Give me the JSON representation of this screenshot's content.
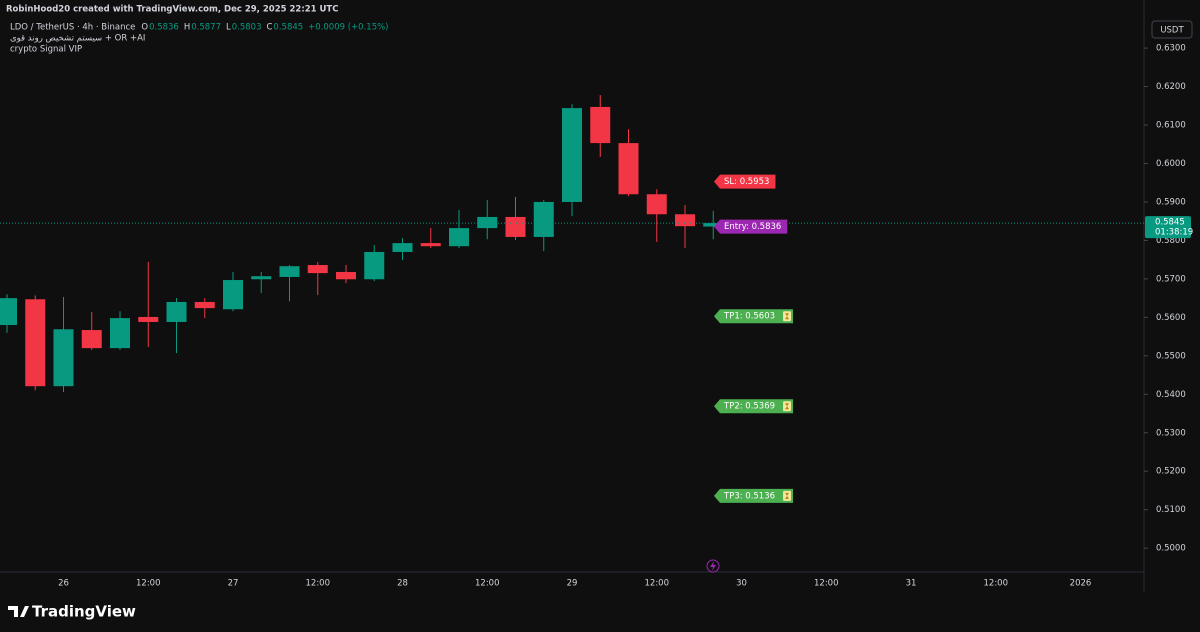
{
  "header": {
    "credit": "RobinHood20 created with TradingView.com, Dec 29, 2025 22:21 UTC",
    "brand": "TradingView"
  },
  "chart_data": {
    "type": "candlestick",
    "symbol": "LDO / TetherUS · 4h · Binance",
    "ohlc_header": {
      "o_label": "O",
      "o": 0.5836,
      "h_label": "H",
      "h": 0.5877,
      "l_label": "L",
      "l": 0.5803,
      "c_label": "C",
      "c": 0.5845,
      "change": "+0.0009 (+0.15%)"
    },
    "indicators": [
      "سیستم تشخیص روند قوی + OR +AI",
      "crypto Signal VIP"
    ],
    "currency": "USDT",
    "countdown": "01:38:19",
    "up_color": "#089981",
    "down_color": "#f23645",
    "open": [
      0.558,
      0.5647,
      0.5421,
      0.5567,
      0.552,
      0.5601,
      0.5588,
      0.564,
      0.5621,
      0.5699,
      0.5705,
      0.5736,
      0.5718,
      0.5699,
      0.577,
      0.5793,
      0.5785,
      0.5832,
      0.5861,
      0.5809,
      0.59,
      0.6147,
      0.6053,
      0.592,
      0.5868,
      0.5836
    ],
    "high": [
      0.566,
      0.5657,
      0.5653,
      0.5614,
      0.5616,
      0.5744,
      0.565,
      0.565,
      0.5718,
      0.5718,
      0.5736,
      0.5744,
      0.5736,
      0.5788,
      0.5806,
      0.5832,
      0.5879,
      0.5905,
      0.5913,
      0.5905,
      0.6154,
      0.6178,
      0.6089,
      0.5933,
      0.5892,
      0.5877
    ],
    "low": [
      0.556,
      0.541,
      0.5406,
      0.5515,
      0.5515,
      0.5523,
      0.5507,
      0.5598,
      0.5616,
      0.5663,
      0.5642,
      0.5658,
      0.5689,
      0.5694,
      0.5749,
      0.578,
      0.578,
      0.5803,
      0.5801,
      0.5772,
      0.5863,
      0.6017,
      0.5915,
      0.5796,
      0.578,
      0.5803
    ],
    "close": [
      0.565,
      0.5421,
      0.5569,
      0.552,
      0.5598,
      0.5588,
      0.564,
      0.5624,
      0.5697,
      0.5707,
      0.5733,
      0.5715,
      0.5699,
      0.577,
      0.5793,
      0.5785,
      0.5832,
      0.5861,
      0.5809,
      0.59,
      0.6144,
      0.6053,
      0.592,
      0.5868,
      0.5837,
      0.5845
    ],
    "levels": [
      {
        "label": "SL: 0.5953",
        "value": 0.5953,
        "color": "#f23645"
      },
      {
        "label": "Entry: 0.5836",
        "value": 0.5836,
        "color": "#9c27b0"
      },
      {
        "label": "TP1: 0.5603",
        "value": 0.5603,
        "color": "#4caf50"
      },
      {
        "label": "TP2: 0.5369",
        "value": 0.5369,
        "color": "#4caf50"
      },
      {
        "label": "TP3: 0.5136",
        "value": 0.5136,
        "color": "#4caf50"
      }
    ],
    "ylim": [
      0.4938,
      0.6425
    ],
    "yticks": [
      {
        "value": 0.63,
        "label": "0.6300"
      },
      {
        "value": 0.62,
        "label": "0.6200"
      },
      {
        "value": 0.61,
        "label": "0.6100"
      },
      {
        "value": 0.6,
        "label": "0.6000"
      },
      {
        "value": 0.59,
        "label": "0.5900"
      },
      {
        "value": 0.58,
        "label": "0.5800"
      },
      {
        "value": 0.57,
        "label": "0.5700"
      },
      {
        "value": 0.56,
        "label": "0.5600"
      },
      {
        "value": 0.55,
        "label": "0.5500"
      },
      {
        "value": 0.54,
        "label": "0.5400"
      },
      {
        "value": 0.53,
        "label": "0.5300"
      },
      {
        "value": 0.52,
        "label": "0.5200"
      },
      {
        "value": 0.51,
        "label": "0.5100"
      },
      {
        "value": 0.5,
        "label": "0.5000"
      }
    ],
    "x_labels": [
      "26",
      "12:00",
      "27",
      "12:00",
      "28",
      "12:00",
      "29",
      "12:00",
      "30",
      "12:00",
      "31",
      "12:00",
      "2026"
    ]
  }
}
